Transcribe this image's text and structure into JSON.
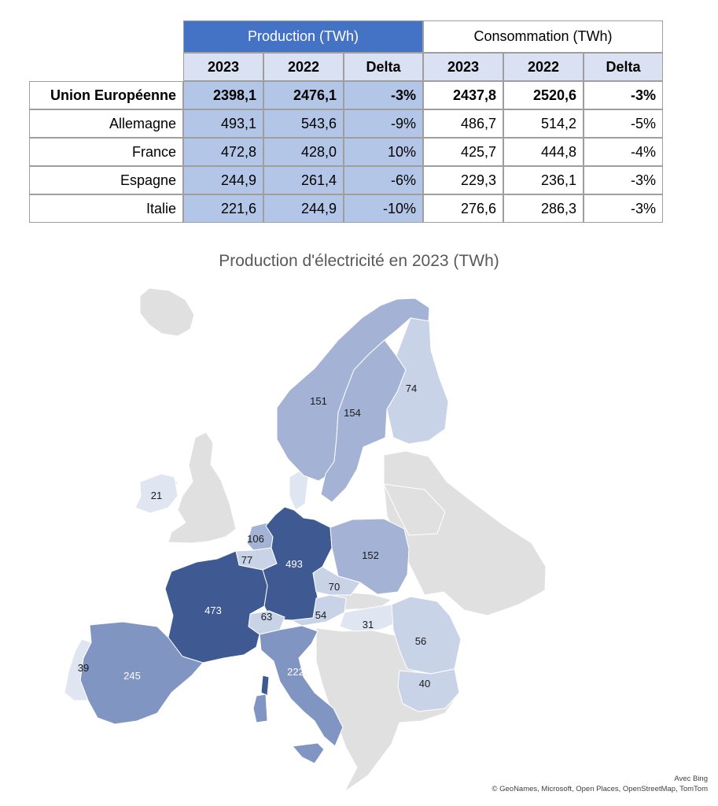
{
  "table": {
    "group_production": "Production (TWh)",
    "group_consommation": "Consommation (TWh)",
    "sub_headers": [
      "2023",
      "2022",
      "Delta",
      "2023",
      "2022",
      "Delta"
    ],
    "rows": [
      {
        "name": "Union Européenne",
        "values": [
          "2398,1",
          "2476,1",
          "-3%",
          "2437,8",
          "2520,6",
          "-3%"
        ]
      },
      {
        "name": "Allemagne",
        "values": [
          "493,1",
          "543,6",
          "-9%",
          "486,7",
          "514,2",
          "-5%"
        ]
      },
      {
        "name": "France",
        "values": [
          "472,8",
          "428,0",
          "10%",
          "425,7",
          "444,8",
          "-4%"
        ]
      },
      {
        "name": "Espagne",
        "values": [
          "244,9",
          "261,4",
          "-6%",
          "229,3",
          "236,1",
          "-3%"
        ]
      },
      {
        "name": "Italie",
        "values": [
          "221,6",
          "244,9",
          "-10%",
          "276,6",
          "286,3",
          "-3%"
        ]
      }
    ]
  },
  "map": {
    "title": "Production d'électricité en 2023 (TWh)",
    "credit_line1": "Avec Bing",
    "credit_line2": "© GeoNames, Microsoft, Open Places, OpenStreetMap, TomTom",
    "colors": {
      "no_data": "#e0e0e0",
      "darkest": "#3f5993",
      "dark": "#8095c1",
      "mid": "#a4b3d5",
      "light": "#c9d3e8",
      "lightest": "#dfe5f1"
    },
    "regions": [
      {
        "name": "Allemagne",
        "value": "493"
      },
      {
        "name": "France",
        "value": "473"
      },
      {
        "name": "Espagne",
        "value": "245"
      },
      {
        "name": "Italie",
        "value": "222"
      },
      {
        "name": "Suède",
        "value": "154"
      },
      {
        "name": "Pologne",
        "value": "152"
      },
      {
        "name": "Norvège",
        "value": "151"
      },
      {
        "name": "Pays-Bas",
        "value": "106"
      },
      {
        "name": "Belgique",
        "value": "77"
      },
      {
        "name": "Finlande",
        "value": "74"
      },
      {
        "name": "Tchéquie",
        "value": "70"
      },
      {
        "name": "Suisse",
        "value": "63"
      },
      {
        "name": "Roumanie",
        "value": "56"
      },
      {
        "name": "Autriche",
        "value": "54"
      },
      {
        "name": "Bulgarie",
        "value": "40"
      },
      {
        "name": "Portugal",
        "value": "39"
      },
      {
        "name": "Hongrie",
        "value": "31"
      },
      {
        "name": "Irlande",
        "value": "21"
      }
    ]
  }
}
